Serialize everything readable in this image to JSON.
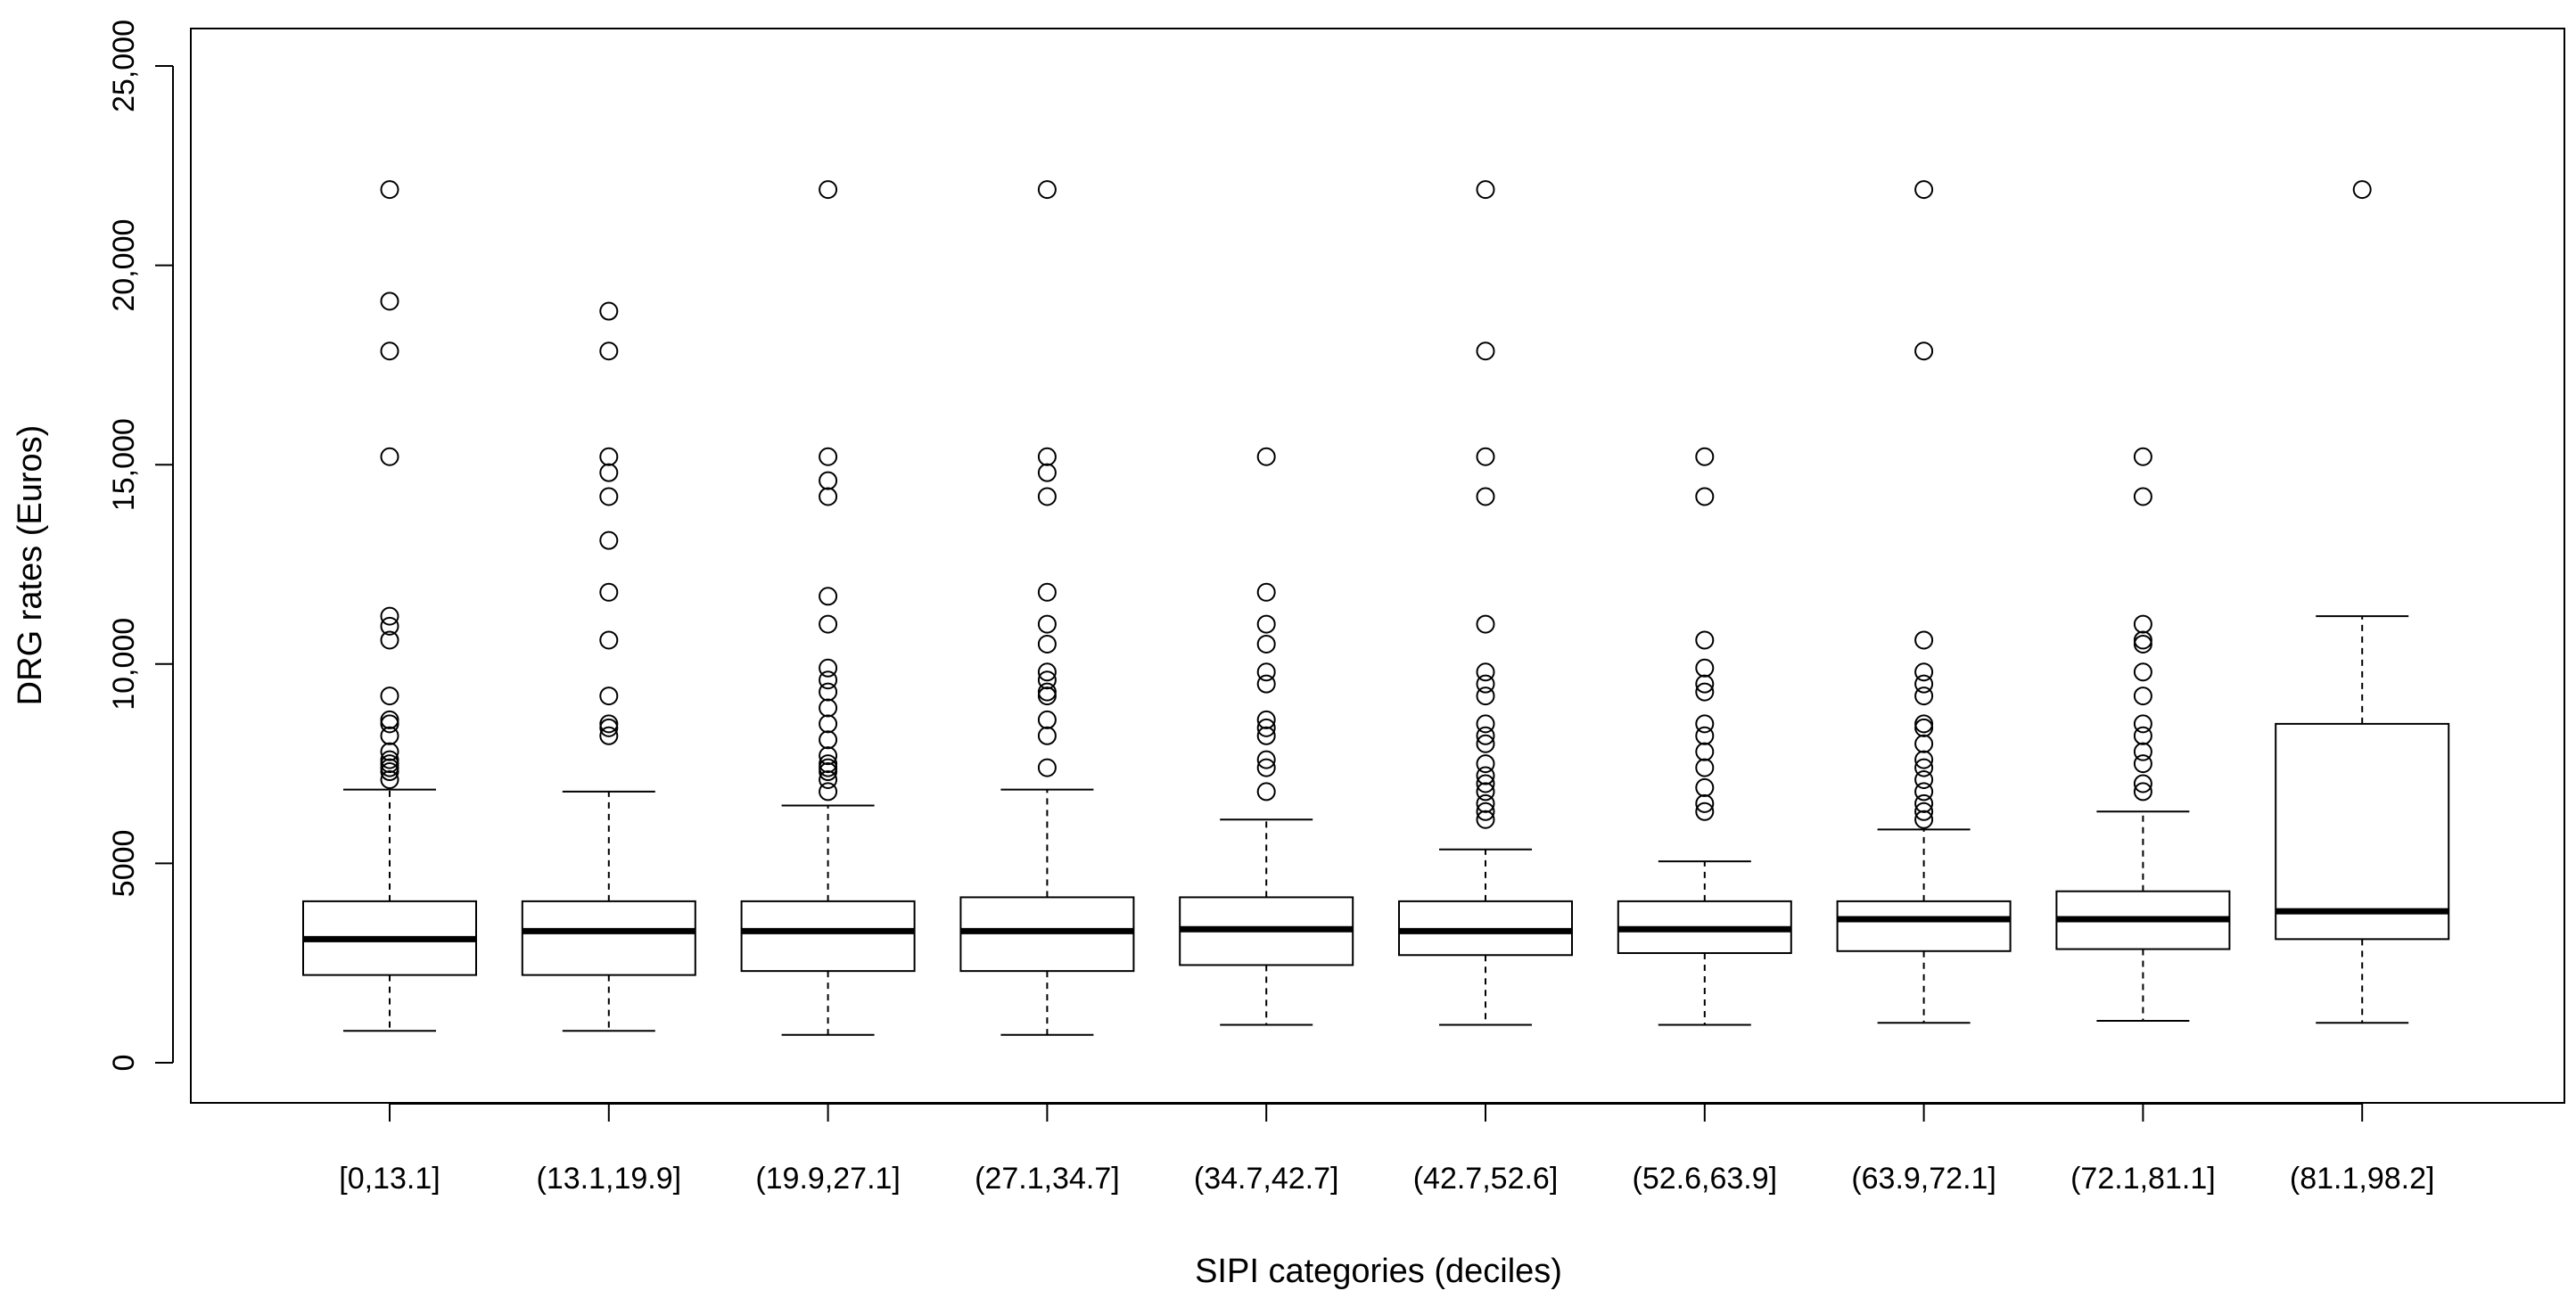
{
  "chart_data": {
    "type": "boxplot",
    "title": "",
    "xlabel": "SIPI categories (deciles)",
    "ylabel": "DRG rates (Euros)",
    "ylim": [
      -1000,
      26000
    ],
    "yticks": [
      0,
      5000,
      10000,
      15000,
      20000,
      25000
    ],
    "ytick_labels": [
      "0",
      "5000",
      "10,000",
      "15,000",
      "20,000",
      "25,000"
    ],
    "grid": false,
    "categories": [
      "[0,13.1]",
      "(13.1,19.9]",
      "(19.9,27.1]",
      "(27.1,34.7]",
      "(34.7,42.7]",
      "(42.7,52.6]",
      "(52.6,63.9]",
      "(63.9,72.1]",
      "(72.1,81.1]",
      "(81.1,98.2]"
    ],
    "boxes": [
      {
        "whisker_low": 800,
        "q1": 2200,
        "median": 3100,
        "q3": 4050,
        "whisker_high": 6850,
        "outliers": [
          7100,
          7300,
          7400,
          7500,
          7600,
          7800,
          8200,
          8500,
          8600,
          9200,
          10600,
          10950,
          11200,
          15200,
          17850,
          19100,
          21900
        ]
      },
      {
        "whisker_low": 800,
        "q1": 2200,
        "median": 3300,
        "q3": 4050,
        "whisker_high": 6800,
        "outliers": [
          8200,
          8400,
          8500,
          9200,
          10600,
          11800,
          13100,
          14200,
          14800,
          15200,
          17850,
          18850
        ]
      },
      {
        "whisker_low": 700,
        "q1": 2300,
        "median": 3300,
        "q3": 4050,
        "whisker_high": 6450,
        "outliers": [
          6800,
          7100,
          7300,
          7400,
          7500,
          7700,
          8100,
          8500,
          8900,
          9300,
          9600,
          9900,
          11000,
          11700,
          14200,
          14600,
          15200,
          21900
        ]
      },
      {
        "whisker_low": 700,
        "q1": 2300,
        "median": 3300,
        "q3": 4150,
        "whisker_high": 6850,
        "outliers": [
          7400,
          8200,
          8600,
          9200,
          9300,
          9600,
          9800,
          10500,
          11000,
          11800,
          14200,
          14800,
          15200,
          21900
        ]
      },
      {
        "whisker_low": 950,
        "q1": 2450,
        "median": 3350,
        "q3": 4150,
        "whisker_high": 6100,
        "outliers": [
          6800,
          7400,
          7600,
          8200,
          8400,
          8600,
          9500,
          9800,
          10500,
          11000,
          11800,
          15200
        ]
      },
      {
        "whisker_low": 950,
        "q1": 2700,
        "median": 3300,
        "q3": 4050,
        "whisker_high": 5350,
        "outliers": [
          6100,
          6300,
          6500,
          6800,
          7000,
          7200,
          7500,
          8000,
          8200,
          8500,
          9200,
          9500,
          9800,
          11000,
          14200,
          15200,
          17850,
          21900
        ]
      },
      {
        "whisker_low": 950,
        "q1": 2750,
        "median": 3350,
        "q3": 4050,
        "whisker_high": 5050,
        "outliers": [
          6300,
          6500,
          6900,
          7400,
          7800,
          8200,
          8500,
          9300,
          9500,
          9900,
          10600,
          14200,
          15200
        ]
      },
      {
        "whisker_low": 1000,
        "q1": 2800,
        "median": 3600,
        "q3": 4050,
        "whisker_high": 5850,
        "outliers": [
          6100,
          6300,
          6500,
          6800,
          7100,
          7400,
          7600,
          8000,
          8400,
          8500,
          9200,
          9500,
          9800,
          10600,
          17850,
          21900
        ]
      },
      {
        "whisker_low": 1050,
        "q1": 2850,
        "median": 3600,
        "q3": 4300,
        "whisker_high": 6300,
        "outliers": [
          6800,
          7000,
          7500,
          7800,
          8200,
          8500,
          9200,
          9800,
          10500,
          10600,
          11000,
          14200,
          15200
        ]
      },
      {
        "whisker_low": 1000,
        "q1": 3100,
        "median": 3800,
        "q3": 8500,
        "whisker_high": 11200,
        "outliers": [
          21900
        ]
      }
    ]
  }
}
